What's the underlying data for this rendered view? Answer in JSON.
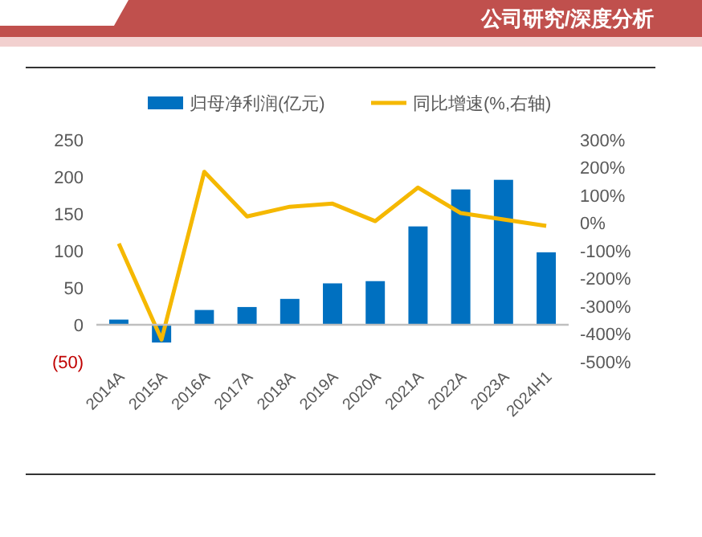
{
  "chart_data": {
    "type": "bar",
    "annotations": [
      "公司研究/深度分析"
    ],
    "categories": [
      "2014A",
      "2015A",
      "2016A",
      "2017A",
      "2018A",
      "2019A",
      "2020A",
      "2021A",
      "2022A",
      "2023A",
      "2024H1"
    ],
    "series": [
      {
        "name": "归母净利润(亿元)",
        "color": "#0070c0",
        "values": [
          7,
          -24,
          20,
          24,
          35,
          56,
          59,
          133,
          183,
          196,
          98
        ]
      },
      {
        "name": "同比增速(%,右轴)",
        "type": "line",
        "axis": "y2",
        "color": "#f5b800",
        "values": [
          -74,
          -420,
          185,
          24,
          59,
          70,
          7,
          128,
          36,
          13,
          -10
        ]
      }
    ],
    "ylim": [
      -50,
      250
    ],
    "yticks": [
      {
        "value": -50,
        "label": "(50)"
      },
      0,
      50,
      100,
      150,
      200,
      250
    ],
    "y2lim": [
      -500,
      300
    ],
    "y2ticks": [
      {
        "value": -500,
        "label": "-500%"
      },
      {
        "value": -400,
        "label": "-400%"
      },
      {
        "value": -300,
        "label": "-300%"
      },
      {
        "value": -200,
        "label": "-200%"
      },
      {
        "value": -100,
        "label": "-100%"
      },
      {
        "value": 0,
        "label": "0%"
      },
      {
        "value": 100,
        "label": "100%"
      },
      {
        "value": 200,
        "label": "200%"
      },
      {
        "value": 300,
        "label": "300%"
      }
    ],
    "legend": "top",
    "marker": "none",
    "line_style": "solid"
  }
}
